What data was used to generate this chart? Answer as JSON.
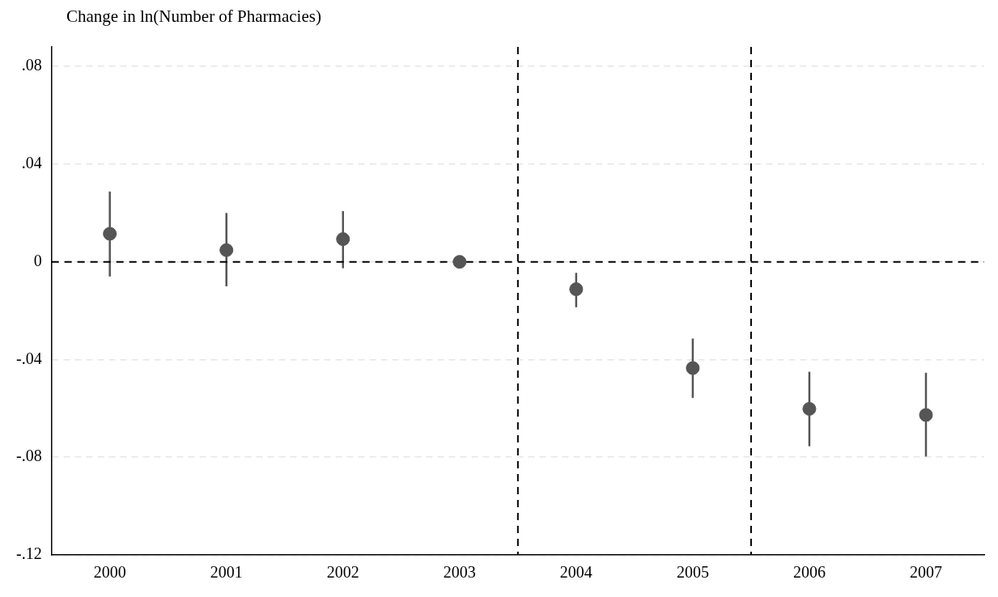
{
  "chart_data": {
    "type": "scatter",
    "ylabel": "Change in ln(Number of Pharmacies)",
    "x": [
      2000,
      2001,
      2002,
      2003,
      2004,
      2005,
      2006,
      2007
    ],
    "series": [
      {
        "color": "#555555",
        "values": [
          0.0115,
          0.0048,
          0.0093,
          0,
          -0.0112,
          -0.0435,
          -0.0602,
          -0.0627
        ],
        "errors": [
          [
            -0.006,
            0.0288
          ],
          [
            -0.01,
            0.02
          ],
          [
            -0.0026,
            0.0208
          ],
          null,
          [
            -0.0186,
            -0.0045
          ],
          [
            -0.0557,
            -0.0314
          ],
          [
            -0.0755,
            -0.045
          ],
          [
            -0.0797,
            -0.0454
          ]
        ]
      }
    ],
    "xlim": [
      1999.5,
      2007.5
    ],
    "xticks": [
      2000,
      2001,
      2002,
      2003,
      2004,
      2005,
      2006,
      2007
    ],
    "ylim": [
      -0.12,
      0.088
    ],
    "yticks": [
      {
        "value": -0.12,
        "label": "-.12"
      },
      {
        "value": -0.08,
        "label": "-.08"
      },
      {
        "value": -0.04,
        "label": "-.04"
      },
      0,
      {
        "value": 0.04,
        "label": ".04"
      },
      {
        "value": 0.08,
        "label": ".08"
      }
    ],
    "ref_lines": [
      {
        "axis": "y",
        "value": 0,
        "color": "#000000",
        "line_style": "dashed"
      },
      {
        "axis": "x",
        "value": 2003.5,
        "color": "#000000",
        "line_style": "dashed"
      },
      {
        "axis": "x",
        "value": 2005.5,
        "color": "#000000",
        "line_style": "dashed"
      }
    ],
    "grid": "y",
    "marker": "circle",
    "legend": false
  }
}
